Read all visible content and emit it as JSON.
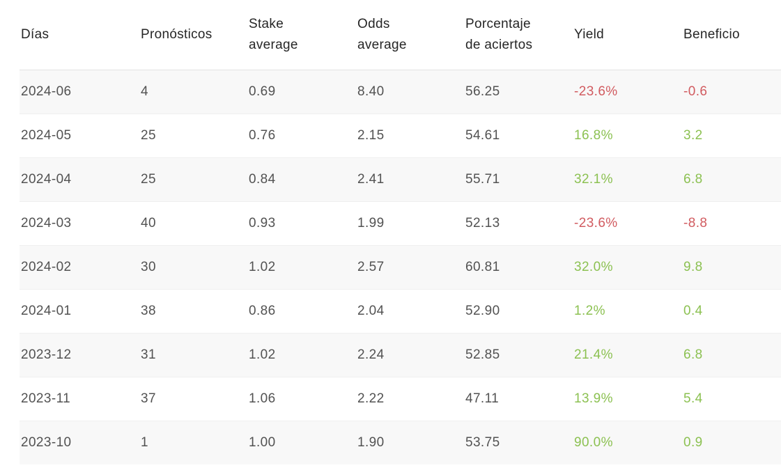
{
  "table": {
    "column_order": [
      "dias",
      "pronosticos",
      "stake_average",
      "odds_average",
      "porcentaje_de_aciertos",
      "yield",
      "beneficio"
    ],
    "headers": [
      {
        "id": "dias",
        "lines": [
          "Días"
        ]
      },
      {
        "id": "pronosticos",
        "lines": [
          "Pronósticos"
        ]
      },
      {
        "id": "stake_average",
        "lines": [
          "Stake",
          "average"
        ]
      },
      {
        "id": "odds_average",
        "lines": [
          "Odds",
          "average"
        ]
      },
      {
        "id": "porcentaje_de_aciertos",
        "lines": [
          "Porcentaje",
          "de aciertos"
        ]
      },
      {
        "id": "yield",
        "lines": [
          "Yield"
        ]
      },
      {
        "id": "beneficio",
        "lines": [
          "Beneficio"
        ]
      }
    ],
    "rows": [
      {
        "dias": "2024-06",
        "pronosticos": "4",
        "stake_average": "0.69",
        "odds_average": "8.40",
        "porcentaje_de_aciertos": "56.25",
        "yield": "-23.6%",
        "beneficio": "-0.6",
        "trend": "negative"
      },
      {
        "dias": "2024-05",
        "pronosticos": "25",
        "stake_average": "0.76",
        "odds_average": "2.15",
        "porcentaje_de_aciertos": "54.61",
        "yield": "16.8%",
        "beneficio": "3.2",
        "trend": "positive"
      },
      {
        "dias": "2024-04",
        "pronosticos": "25",
        "stake_average": "0.84",
        "odds_average": "2.41",
        "porcentaje_de_aciertos": "55.71",
        "yield": "32.1%",
        "beneficio": "6.8",
        "trend": "positive"
      },
      {
        "dias": "2024-03",
        "pronosticos": "40",
        "stake_average": "0.93",
        "odds_average": "1.99",
        "porcentaje_de_aciertos": "52.13",
        "yield": "-23.6%",
        "beneficio": "-8.8",
        "trend": "negative"
      },
      {
        "dias": "2024-02",
        "pronosticos": "30",
        "stake_average": "1.02",
        "odds_average": "2.57",
        "porcentaje_de_aciertos": "60.81",
        "yield": "32.0%",
        "beneficio": "9.8",
        "trend": "positive"
      },
      {
        "dias": "2024-01",
        "pronosticos": "38",
        "stake_average": "0.86",
        "odds_average": "2.04",
        "porcentaje_de_aciertos": "52.90",
        "yield": "1.2%",
        "beneficio": "0.4",
        "trend": "positive"
      },
      {
        "dias": "2023-12",
        "pronosticos": "31",
        "stake_average": "1.02",
        "odds_average": "2.24",
        "porcentaje_de_aciertos": "52.85",
        "yield": "21.4%",
        "beneficio": "6.8",
        "trend": "positive"
      },
      {
        "dias": "2023-11",
        "pronosticos": "37",
        "stake_average": "1.06",
        "odds_average": "2.22",
        "porcentaje_de_aciertos": "47.11",
        "yield": "13.9%",
        "beneficio": "5.4",
        "trend": "positive"
      },
      {
        "dias": "2023-10",
        "pronosticos": "1",
        "stake_average": "1.00",
        "odds_average": "1.90",
        "porcentaje_de_aciertos": "53.75",
        "yield": "90.0%",
        "beneficio": "0.9",
        "trend": "positive"
      }
    ]
  },
  "colors": {
    "positive": "#8cc152",
    "negative": "#d15b60",
    "header_text": "#262626",
    "body_text": "#525252",
    "zebra_row": "#f8f8f8",
    "divider": "#efefef"
  }
}
